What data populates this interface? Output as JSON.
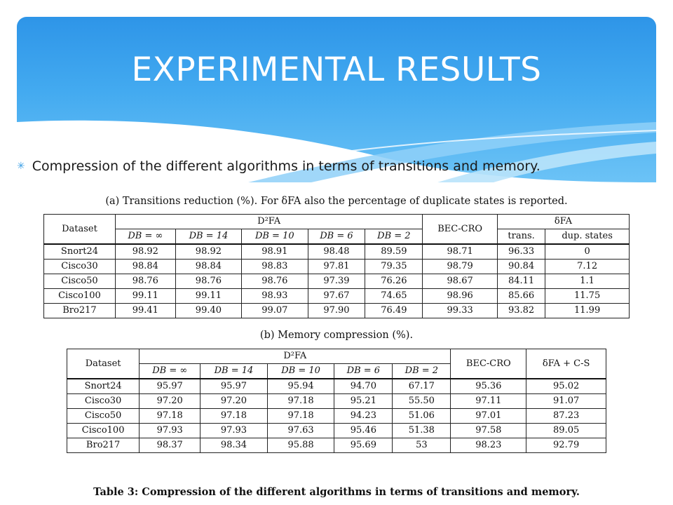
{
  "slide": {
    "title": "EXPERIMENTAL RESULTS",
    "bullet_icon": "asterisk-icon",
    "bullet_text": "Compression of the different algorithms in terms of transitions and memory.",
    "colors": {
      "banner_top": "#2e95e8",
      "banner_bottom": "#6cc3f6",
      "bullet": "#3a9fe6"
    }
  },
  "table_a": {
    "caption": "(a) Transitions reduction (%). For δFA also the percentage of duplicate states is reported.",
    "header": {
      "dataset": "Dataset",
      "group_d2fa": "D²FA",
      "sub": [
        "DB = ∞",
        "DB = 14",
        "DB = 10",
        "DB = 6",
        "DB = 2"
      ],
      "bec": "BEC-CRO",
      "group_dfa": "δFA",
      "dfa_sub": [
        "trans.",
        "dup. states"
      ]
    },
    "rows": [
      [
        "Snort24",
        "98.92",
        "98.92",
        "98.91",
        "98.48",
        "89.59",
        "98.71",
        "96.33",
        "0"
      ],
      [
        "Cisco30",
        "98.84",
        "98.84",
        "98.83",
        "97.81",
        "79.35",
        "98.79",
        "90.84",
        "7.12"
      ],
      [
        "Cisco50",
        "98.76",
        "98.76",
        "98.76",
        "97.39",
        "76.26",
        "98.67",
        "84.11",
        "1.1"
      ],
      [
        "Cisco100",
        "99.11",
        "99.11",
        "98.93",
        "97.67",
        "74.65",
        "98.96",
        "85.66",
        "11.75"
      ],
      [
        "Bro217",
        "99.41",
        "99.40",
        "99.07",
        "97.90",
        "76.49",
        "99.33",
        "93.82",
        "11.99"
      ]
    ]
  },
  "table_b": {
    "caption": "(b) Memory compression (%).",
    "header": {
      "dataset": "Dataset",
      "group_d2fa": "D²FA",
      "sub": [
        "DB = ∞",
        "DB = 14",
        "DB = 10",
        "DB = 6",
        "DB = 2"
      ],
      "bec": "BEC-CRO",
      "dfa_cs": "δFA + C-S"
    },
    "rows": [
      [
        "Snort24",
        "95.97",
        "95.97",
        "95.94",
        "94.70",
        "67.17",
        "95.36",
        "95.02"
      ],
      [
        "Cisco30",
        "97.20",
        "97.20",
        "97.18",
        "95.21",
        "55.50",
        "97.11",
        "91.07"
      ],
      [
        "Cisco50",
        "97.18",
        "97.18",
        "97.18",
        "94.23",
        "51.06",
        "97.01",
        "87.23"
      ],
      [
        "Cisco100",
        "97.93",
        "97.93",
        "97.63",
        "95.46",
        "51.38",
        "97.58",
        "89.05"
      ],
      [
        "Bro217",
        "98.37",
        "98.34",
        "95.88",
        "95.69",
        "53",
        "98.23",
        "92.79"
      ]
    ]
  },
  "table_caption": "Table 3: Compression of the different algorithms in terms of transitions and memory."
}
